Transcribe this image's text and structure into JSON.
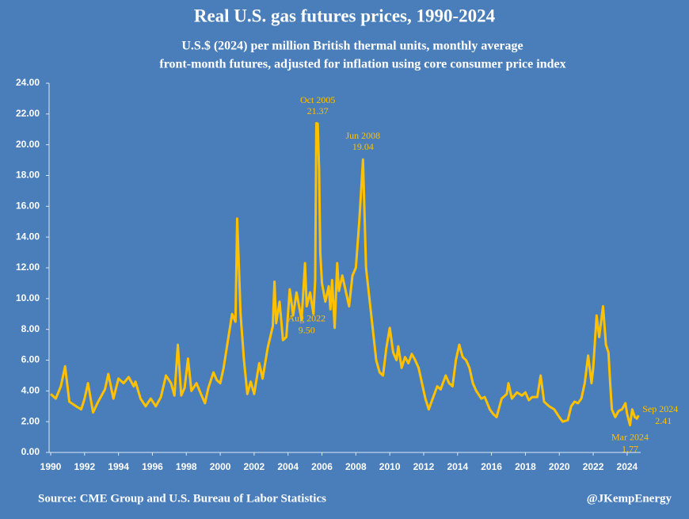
{
  "chart_data": {
    "type": "line",
    "title": "Real U.S. gas futures prices, 1990-2024",
    "subtitle": [
      "U.S.$ (2024) per million British thermal units, monthly average",
      "front-month futures, adjusted for inflation using core consumer price index"
    ],
    "source": "Source: CME Group and U.S. Bureau of Labor Statistics",
    "credit": "@JKempEnergy",
    "color": "#ffc000",
    "xlim": [
      1990,
      2024.8
    ],
    "xticks": [
      1990,
      1992,
      1994,
      1996,
      1998,
      2000,
      2002,
      2004,
      2006,
      2008,
      2010,
      2012,
      2014,
      2016,
      2018,
      2020,
      2022,
      2024
    ],
    "ylim": [
      0,
      24
    ],
    "yticks": [
      {
        "value": 0,
        "label": "0.00"
      },
      {
        "value": 2,
        "label": "2.00"
      },
      {
        "value": 4,
        "label": "4.00"
      },
      {
        "value": 6,
        "label": "6.00"
      },
      {
        "value": 8,
        "label": "8.00"
      },
      {
        "value": 10,
        "label": "10.00"
      },
      {
        "value": 12,
        "label": "12.00"
      },
      {
        "value": 14,
        "label": "14.00"
      },
      {
        "value": 16,
        "label": "16.00"
      },
      {
        "value": 18,
        "label": "18.00"
      },
      {
        "value": 20,
        "label": "20.00"
      },
      {
        "value": 22,
        "label": "22.00"
      },
      {
        "value": 24,
        "label": "24.00"
      }
    ],
    "x": [
      1990.0,
      1990.3,
      1990.6,
      1990.85,
      1991.1,
      1991.5,
      1991.8,
      1992.0,
      1992.2,
      1992.5,
      1992.8,
      1993.2,
      1993.4,
      1993.7,
      1994.0,
      1994.3,
      1994.6,
      1994.9,
      1995.0,
      1995.3,
      1995.6,
      1995.9,
      1996.2,
      1996.5,
      1996.8,
      1997.1,
      1997.3,
      1997.5,
      1997.7,
      1997.9,
      1998.1,
      1998.3,
      1998.6,
      1998.9,
      1999.1,
      1999.3,
      1999.6,
      1999.8,
      2000.0,
      2000.2,
      2000.5,
      2000.7,
      2000.9,
      2001.0,
      2001.2,
      2001.4,
      2001.6,
      2001.8,
      2002.0,
      2002.3,
      2002.5,
      2002.8,
      2003.1,
      2003.2,
      2003.3,
      2003.5,
      2003.7,
      2003.9,
      2004.1,
      2004.3,
      2004.5,
      2004.8,
      2005.0,
      2005.1,
      2005.3,
      2005.5,
      2005.6,
      2005.67,
      2005.75,
      2005.83,
      2005.9,
      2006.0,
      2006.2,
      2006.4,
      2006.5,
      2006.6,
      2006.75,
      2006.9,
      2007.0,
      2007.2,
      2007.4,
      2007.6,
      2007.8,
      2008.0,
      2008.2,
      2008.42,
      2008.6,
      2008.8,
      2009.0,
      2009.2,
      2009.4,
      2009.6,
      2009.8,
      2010.0,
      2010.2,
      2010.4,
      2010.5,
      2010.7,
      2010.9,
      2011.1,
      2011.3,
      2011.5,
      2011.7,
      2011.9,
      2012.1,
      2012.3,
      2012.5,
      2012.8,
      2013.0,
      2013.3,
      2013.5,
      2013.7,
      2013.9,
      2014.1,
      2014.3,
      2014.5,
      2014.7,
      2014.9,
      2015.1,
      2015.4,
      2015.6,
      2015.9,
      2016.1,
      2016.3,
      2016.6,
      2016.9,
      2017.0,
      2017.2,
      2017.5,
      2017.8,
      2018.0,
      2018.2,
      2018.4,
      2018.7,
      2018.9,
      2019.1,
      2019.4,
      2019.7,
      2020.0,
      2020.2,
      2020.5,
      2020.7,
      2020.9,
      2021.1,
      2021.3,
      2021.5,
      2021.7,
      2021.9,
      2022.0,
      2022.2,
      2022.35,
      2022.58,
      2022.75,
      2022.9,
      2023.0,
      2023.1,
      2023.3,
      2023.5,
      2023.7,
      2023.9,
      2024.0,
      2024.17,
      2024.3,
      2024.45,
      2024.58,
      2024.67
    ],
    "values": [
      3.8,
      3.5,
      4.3,
      5.6,
      3.3,
      3.0,
      2.8,
      3.5,
      4.5,
      2.6,
      3.3,
      4.1,
      5.1,
      3.5,
      4.8,
      4.5,
      4.9,
      4.3,
      4.6,
      3.5,
      3.0,
      3.5,
      3.0,
      3.6,
      5.0,
      4.5,
      3.7,
      7.0,
      3.7,
      4.2,
      6.1,
      4.0,
      4.5,
      3.7,
      3.2,
      4.2,
      5.2,
      4.7,
      4.5,
      5.5,
      7.6,
      9.0,
      8.5,
      15.2,
      9.0,
      6.0,
      3.8,
      4.6,
      3.8,
      5.8,
      4.8,
      6.8,
      8.2,
      11.1,
      8.4,
      9.8,
      7.3,
      7.5,
      10.6,
      8.9,
      10.4,
      8.6,
      12.3,
      9.5,
      10.4,
      9.0,
      11.2,
      21.4,
      21.37,
      18.4,
      13.0,
      11.0,
      9.8,
      10.8,
      9.3,
      11.2,
      8.1,
      12.3,
      10.5,
      11.5,
      10.5,
      9.5,
      11.5,
      12.0,
      15.0,
      19.04,
      12.0,
      10.0,
      8.0,
      6.0,
      5.2,
      5.0,
      6.8,
      8.1,
      6.5,
      6.0,
      6.9,
      5.5,
      6.2,
      5.8,
      6.4,
      6.0,
      5.5,
      4.5,
      3.5,
      2.8,
      3.4,
      4.3,
      4.1,
      5.0,
      4.5,
      4.3,
      6.0,
      7.0,
      6.2,
      6.0,
      5.5,
      4.5,
      4.0,
      3.5,
      3.6,
      2.8,
      2.5,
      2.3,
      3.5,
      3.8,
      4.5,
      3.5,
      3.9,
      3.7,
      3.9,
      3.4,
      3.6,
      3.6,
      5.0,
      3.3,
      3.0,
      2.8,
      2.3,
      2.0,
      2.1,
      3.0,
      3.3,
      3.2,
      3.5,
      4.5,
      6.3,
      4.5,
      5.5,
      8.9,
      7.5,
      9.5,
      7.0,
      6.5,
      4.5,
      2.8,
      2.3,
      2.7,
      2.8,
      3.2,
      2.5,
      1.77,
      2.8,
      2.3,
      2.2,
      2.41
    ],
    "annotations": [
      {
        "label": "Oct 2005",
        "value": 21.37
      },
      {
        "label": "Jun 2008",
        "value": 19.04
      },
      {
        "label": "Aug 2022",
        "value": 9.5,
        "value_label": "9.50"
      },
      {
        "label": "Mar 2024",
        "value": 1.77
      },
      {
        "label": "Sep 2024",
        "value": 2.41
      }
    ]
  }
}
